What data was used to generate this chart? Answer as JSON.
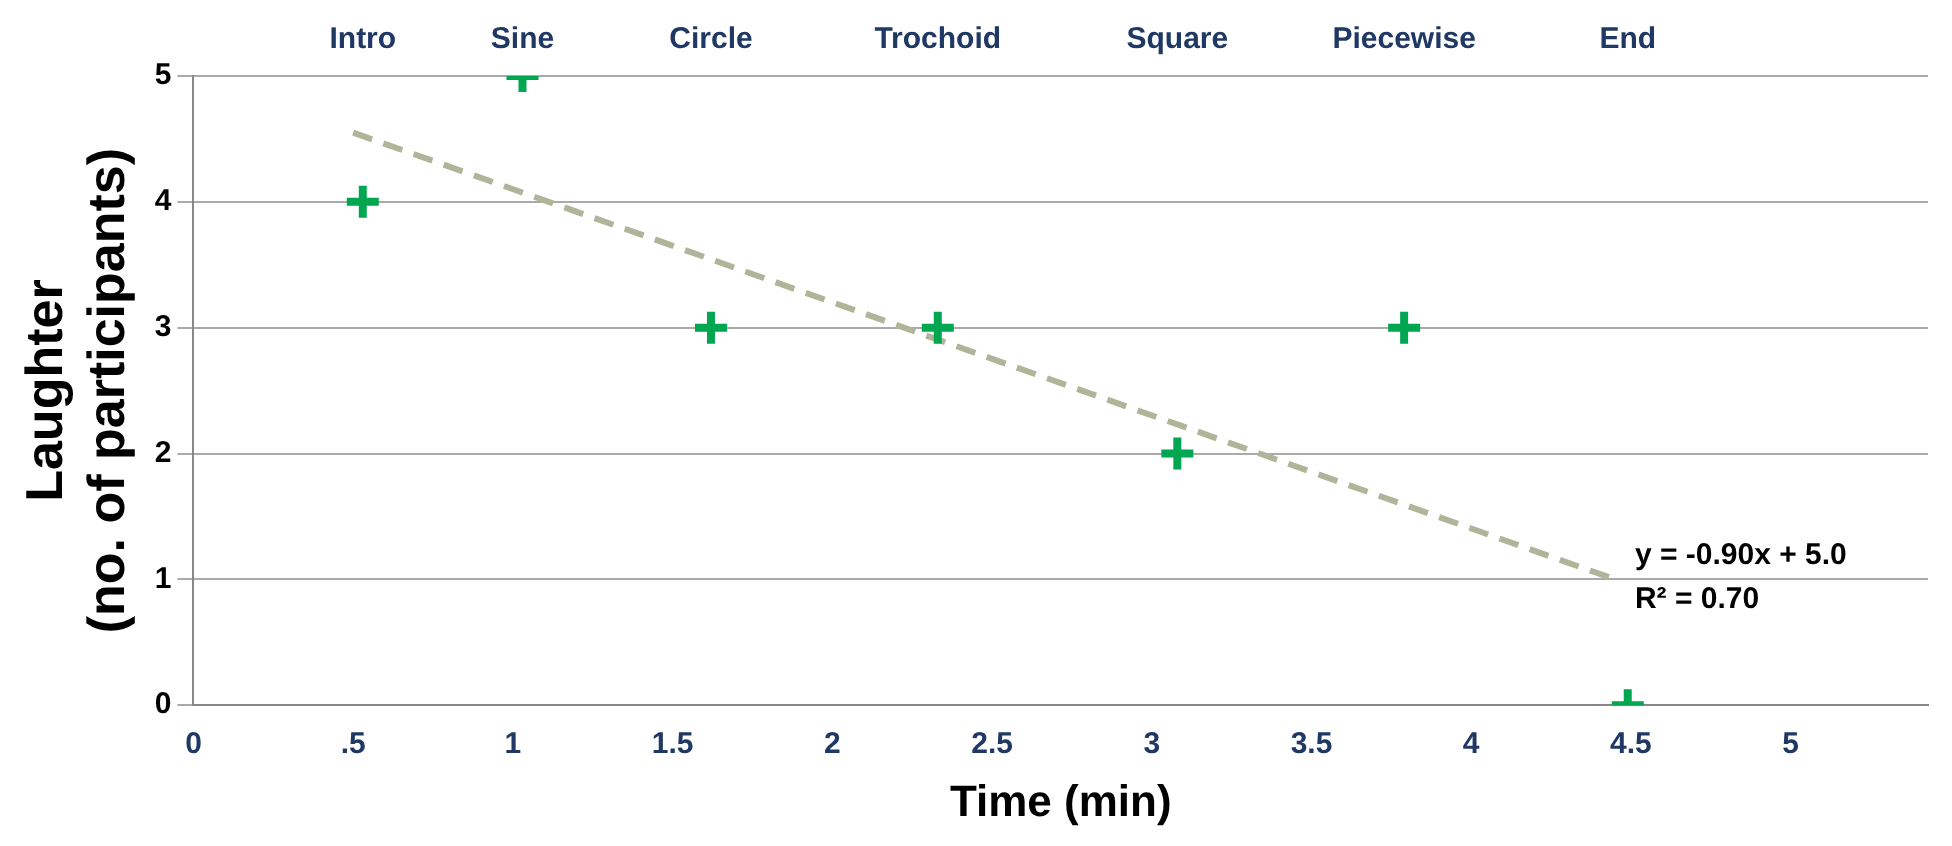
{
  "chart_data": {
    "type": "scatter",
    "xlabel": "Time (min)",
    "ylabel": "Laughter\n(no. of participants)",
    "xlim": [
      0,
      5.43
    ],
    "xticks": [
      0,
      {
        "value": 0.5,
        "label": ".5"
      },
      1,
      1.5,
      2,
      2.5,
      3,
      3.5,
      4,
      4.5,
      5
    ],
    "ylim": [
      0,
      5
    ],
    "yticks": [
      0,
      1,
      2,
      3,
      4,
      5
    ],
    "grid": "y",
    "legend": false,
    "marker": "cross",
    "series": [
      {
        "color": "#00a650",
        "x": [
          0.53,
          1.03,
          1.62,
          2.33,
          3.08,
          3.79,
          4.49
        ],
        "values": [
          4,
          5,
          3,
          3,
          2,
          3,
          0
        ]
      },
      {
        "type": "line",
        "color": "#b0b59a",
        "line_style": "dashed",
        "marker": "none",
        "x": [
          0.5,
          4.45
        ],
        "values": [
          4.55,
          1.0
        ]
      }
    ],
    "annotations": [
      "Intro",
      "Sine",
      "Circle",
      "Trochoid",
      "Square",
      "Piecewise",
      "End",
      "y = -0.90x + 5.0",
      "R² = 0.70"
    ]
  }
}
